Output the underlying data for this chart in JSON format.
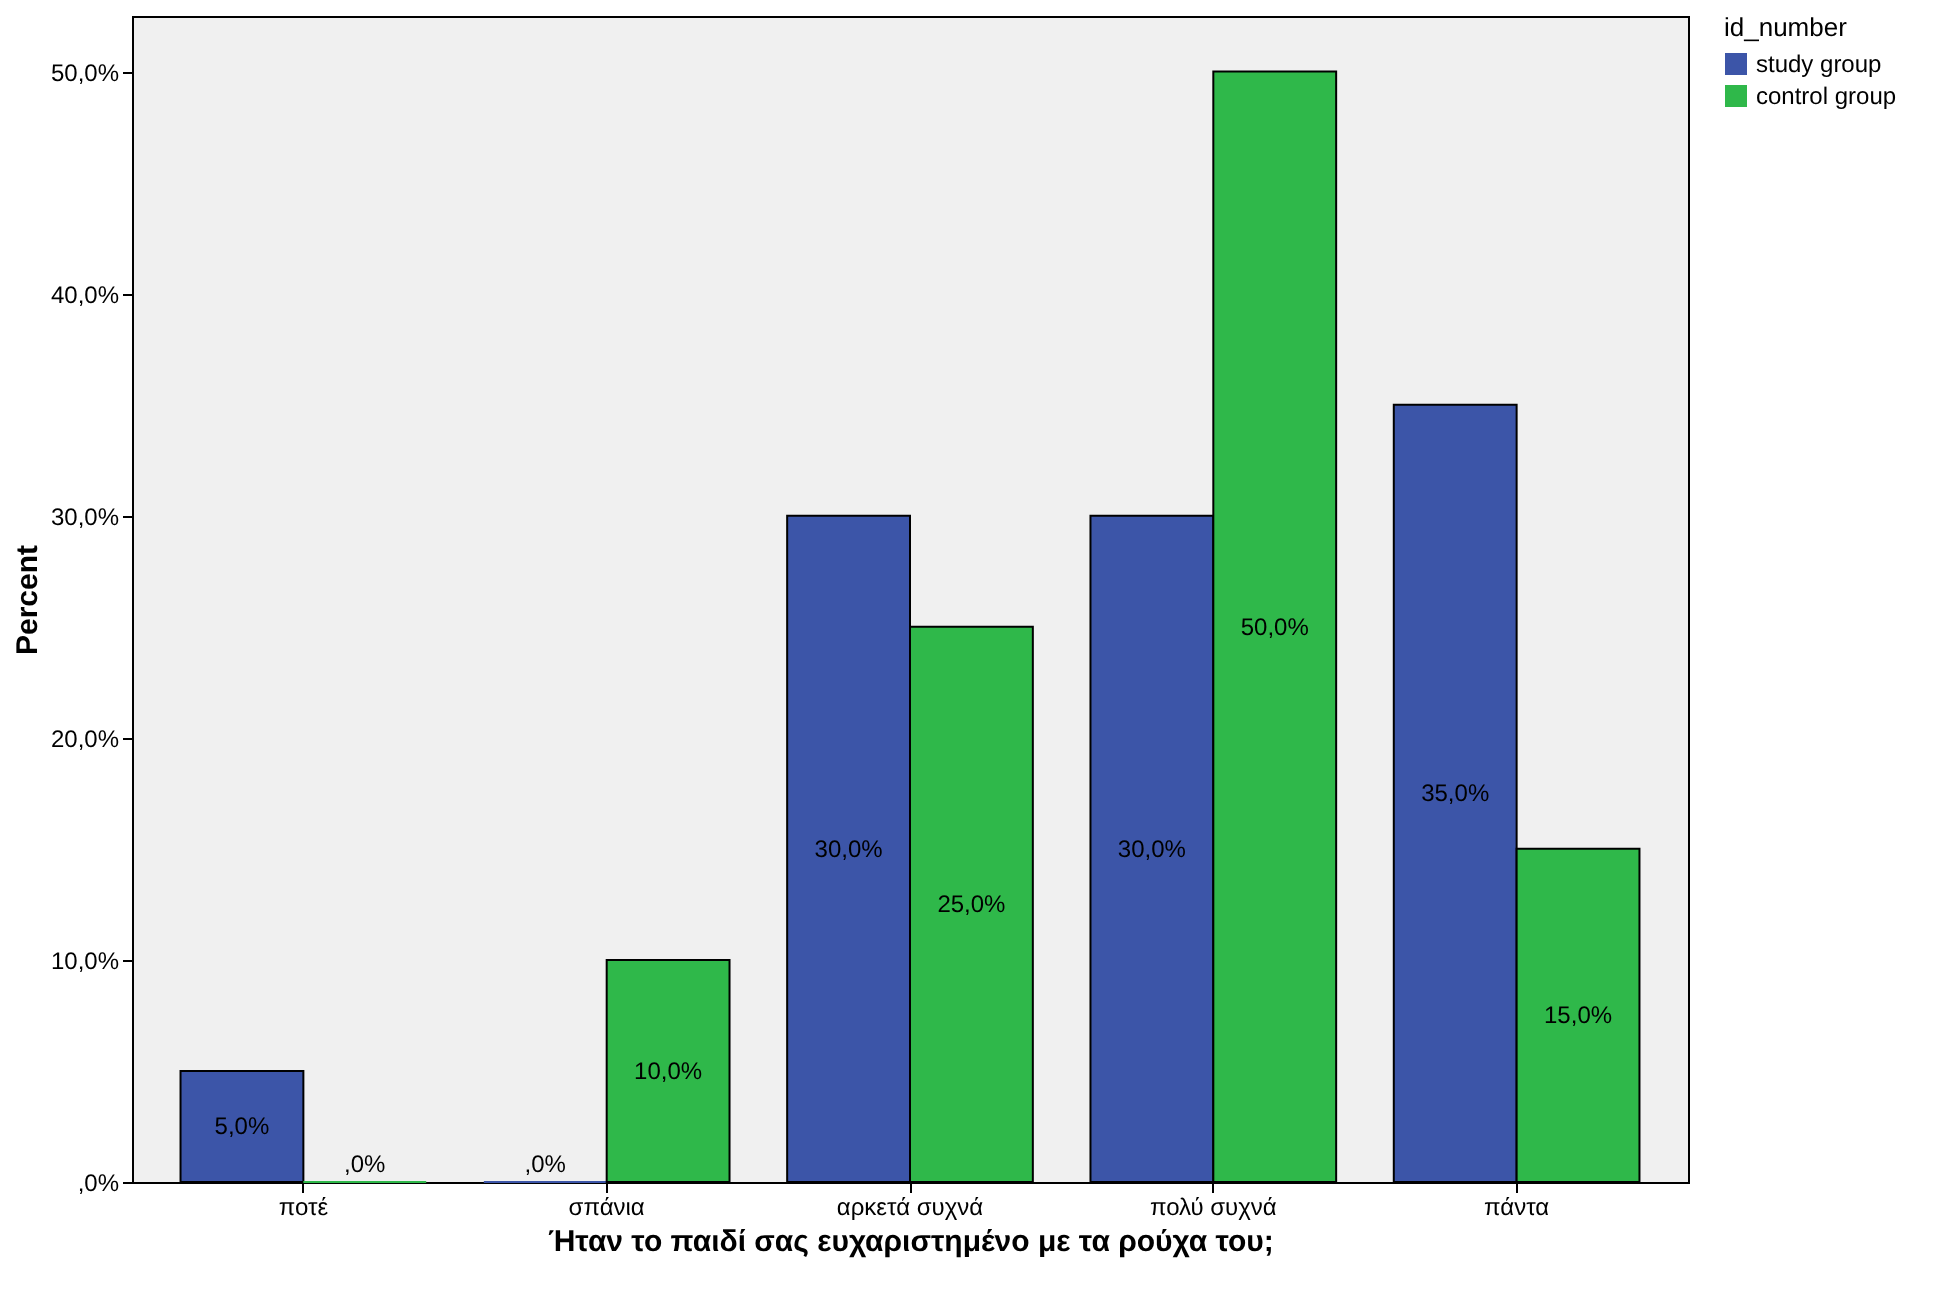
{
  "chart_data": {
    "type": "bar",
    "xlabel": "Ήταν το παιδί σας ευχαριστημένο με τα ρούχα του;",
    "ylabel": "Percent",
    "legend_title": "id_number",
    "legend": "top right",
    "categories": [
      "ποτέ",
      "σπάνια",
      "αρκετά συχνά",
      "πολύ συχνά",
      "πάντα"
    ],
    "series": [
      {
        "name": "study group",
        "color": "#3c55a8",
        "values": [
          5,
          0,
          30,
          30,
          35
        ],
        "value_labels": [
          "5,0%",
          ",0%",
          "30,0%",
          "30,0%",
          "35,0%"
        ]
      },
      {
        "name": "control group",
        "color": "#2fb84a",
        "values": [
          0,
          10,
          25,
          50,
          15
        ],
        "value_labels": [
          ",0%",
          "10,0%",
          "25,0%",
          "50,0%",
          "15,0%"
        ]
      }
    ],
    "ylim": [
      0,
      52.5
    ],
    "yticks": [
      {
        "value": 0,
        "label": ",0%"
      },
      {
        "value": 10,
        "label": "10,0%"
      },
      {
        "value": 20,
        "label": "20,0%"
      },
      {
        "value": 30,
        "label": "30,0%"
      },
      {
        "value": 40,
        "label": "40,0%"
      },
      {
        "value": 50,
        "label": "50,0%"
      }
    ]
  }
}
